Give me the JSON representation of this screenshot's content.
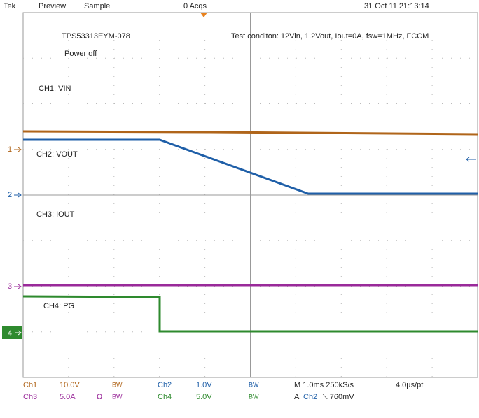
{
  "header": {
    "brand": "Tek",
    "mode": "Preview",
    "acquisition": "Sample",
    "acqs": "0 Acqs",
    "timestamp": "31 Oct 11 21:13:14"
  },
  "annotations": {
    "device": "TPS53313EYM-078",
    "state": "Power off",
    "conditions": "Test conditon: 12Vin, 1.2Vout, Iout=0A, fsw=1MHz, FCCM"
  },
  "channels": [
    {
      "marker": "1",
      "label": "CH1: VIN",
      "name": "Ch1",
      "scale": "10.0V",
      "bw": "BW"
    },
    {
      "marker": "2",
      "label": "CH2: VOUT",
      "name": "Ch2",
      "scale": "1.0V",
      "bw": "BW"
    },
    {
      "marker": "3",
      "label": "CH3: IOUT",
      "name": "Ch3",
      "scale": "5.0A",
      "impedance": "Ω",
      "bw": "BW"
    },
    {
      "marker": "4",
      "label": "CH4: PG",
      "name": "Ch4",
      "scale": "5.0V",
      "bw": "BW"
    }
  ],
  "status": {
    "timebase": "M 1.0ms 250kS/s",
    "resolution": "4.0µs/pt",
    "trigger_prefix": "A",
    "trigger_source": "Ch2",
    "trigger_level": "⟍ 760mV"
  }
}
